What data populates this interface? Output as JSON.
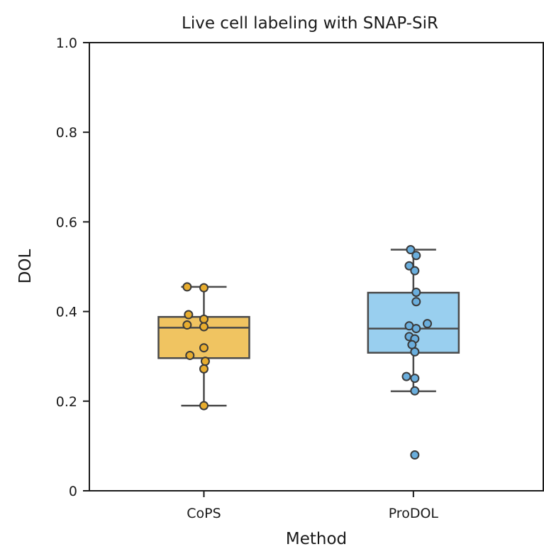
{
  "chart_data": {
    "type": "box",
    "title": "Live cell labeling with SNAP-SiR",
    "xlabel": "Method",
    "ylabel": "DOL",
    "ylim": [
      0,
      1.0
    ],
    "yticks": [
      {
        "value": 0,
        "label": "0"
      },
      {
        "value": 0.2,
        "label": "0.2"
      },
      {
        "value": 0.4,
        "label": "0.4"
      },
      {
        "value": 0.6,
        "label": "0.6"
      },
      {
        "value": 0.8,
        "label": "0.8"
      },
      {
        "value": 1.0,
        "label": "1.0"
      }
    ],
    "categories": [
      "CoPS",
      "ProDOL"
    ],
    "series": [
      {
        "name": "CoPS",
        "color": "#f0c461",
        "point_color": "#e8ad2e",
        "box": {
          "whisker_low": 0.19,
          "q1": 0.296,
          "median": 0.364,
          "q3": 0.388,
          "whisker_high": 0.455
        },
        "points": [
          {
            "y": 0.455,
            "jitter": -0.12
          },
          {
            "y": 0.453,
            "jitter": 0.0
          },
          {
            "y": 0.393,
            "jitter": -0.11
          },
          {
            "y": 0.383,
            "jitter": 0.0
          },
          {
            "y": 0.37,
            "jitter": -0.12
          },
          {
            "y": 0.366,
            "jitter": 0.0
          },
          {
            "y": 0.319,
            "jitter": 0.0
          },
          {
            "y": 0.302,
            "jitter": -0.1
          },
          {
            "y": 0.289,
            "jitter": 0.01
          },
          {
            "y": 0.272,
            "jitter": 0.0
          },
          {
            "y": 0.19,
            "jitter": 0.0
          }
        ]
      },
      {
        "name": "ProDOL",
        "color": "#99cfef",
        "point_color": "#6aaedd",
        "box": {
          "whisker_low": 0.222,
          "q1": 0.308,
          "median": 0.362,
          "q3": 0.442,
          "whisker_high": 0.538
        },
        "points": [
          {
            "y": 0.538,
            "jitter": -0.02
          },
          {
            "y": 0.525,
            "jitter": 0.02
          },
          {
            "y": 0.502,
            "jitter": -0.03
          },
          {
            "y": 0.491,
            "jitter": 0.01
          },
          {
            "y": 0.443,
            "jitter": 0.02
          },
          {
            "y": 0.422,
            "jitter": 0.02
          },
          {
            "y": 0.373,
            "jitter": 0.1
          },
          {
            "y": 0.368,
            "jitter": -0.03
          },
          {
            "y": 0.362,
            "jitter": 0.02
          },
          {
            "y": 0.344,
            "jitter": -0.03
          },
          {
            "y": 0.339,
            "jitter": 0.01
          },
          {
            "y": 0.326,
            "jitter": -0.01
          },
          {
            "y": 0.31,
            "jitter": 0.01
          },
          {
            "y": 0.255,
            "jitter": -0.05
          },
          {
            "y": 0.251,
            "jitter": 0.01
          },
          {
            "y": 0.223,
            "jitter": 0.01
          },
          {
            "y": 0.08,
            "jitter": 0.01
          }
        ]
      }
    ]
  }
}
